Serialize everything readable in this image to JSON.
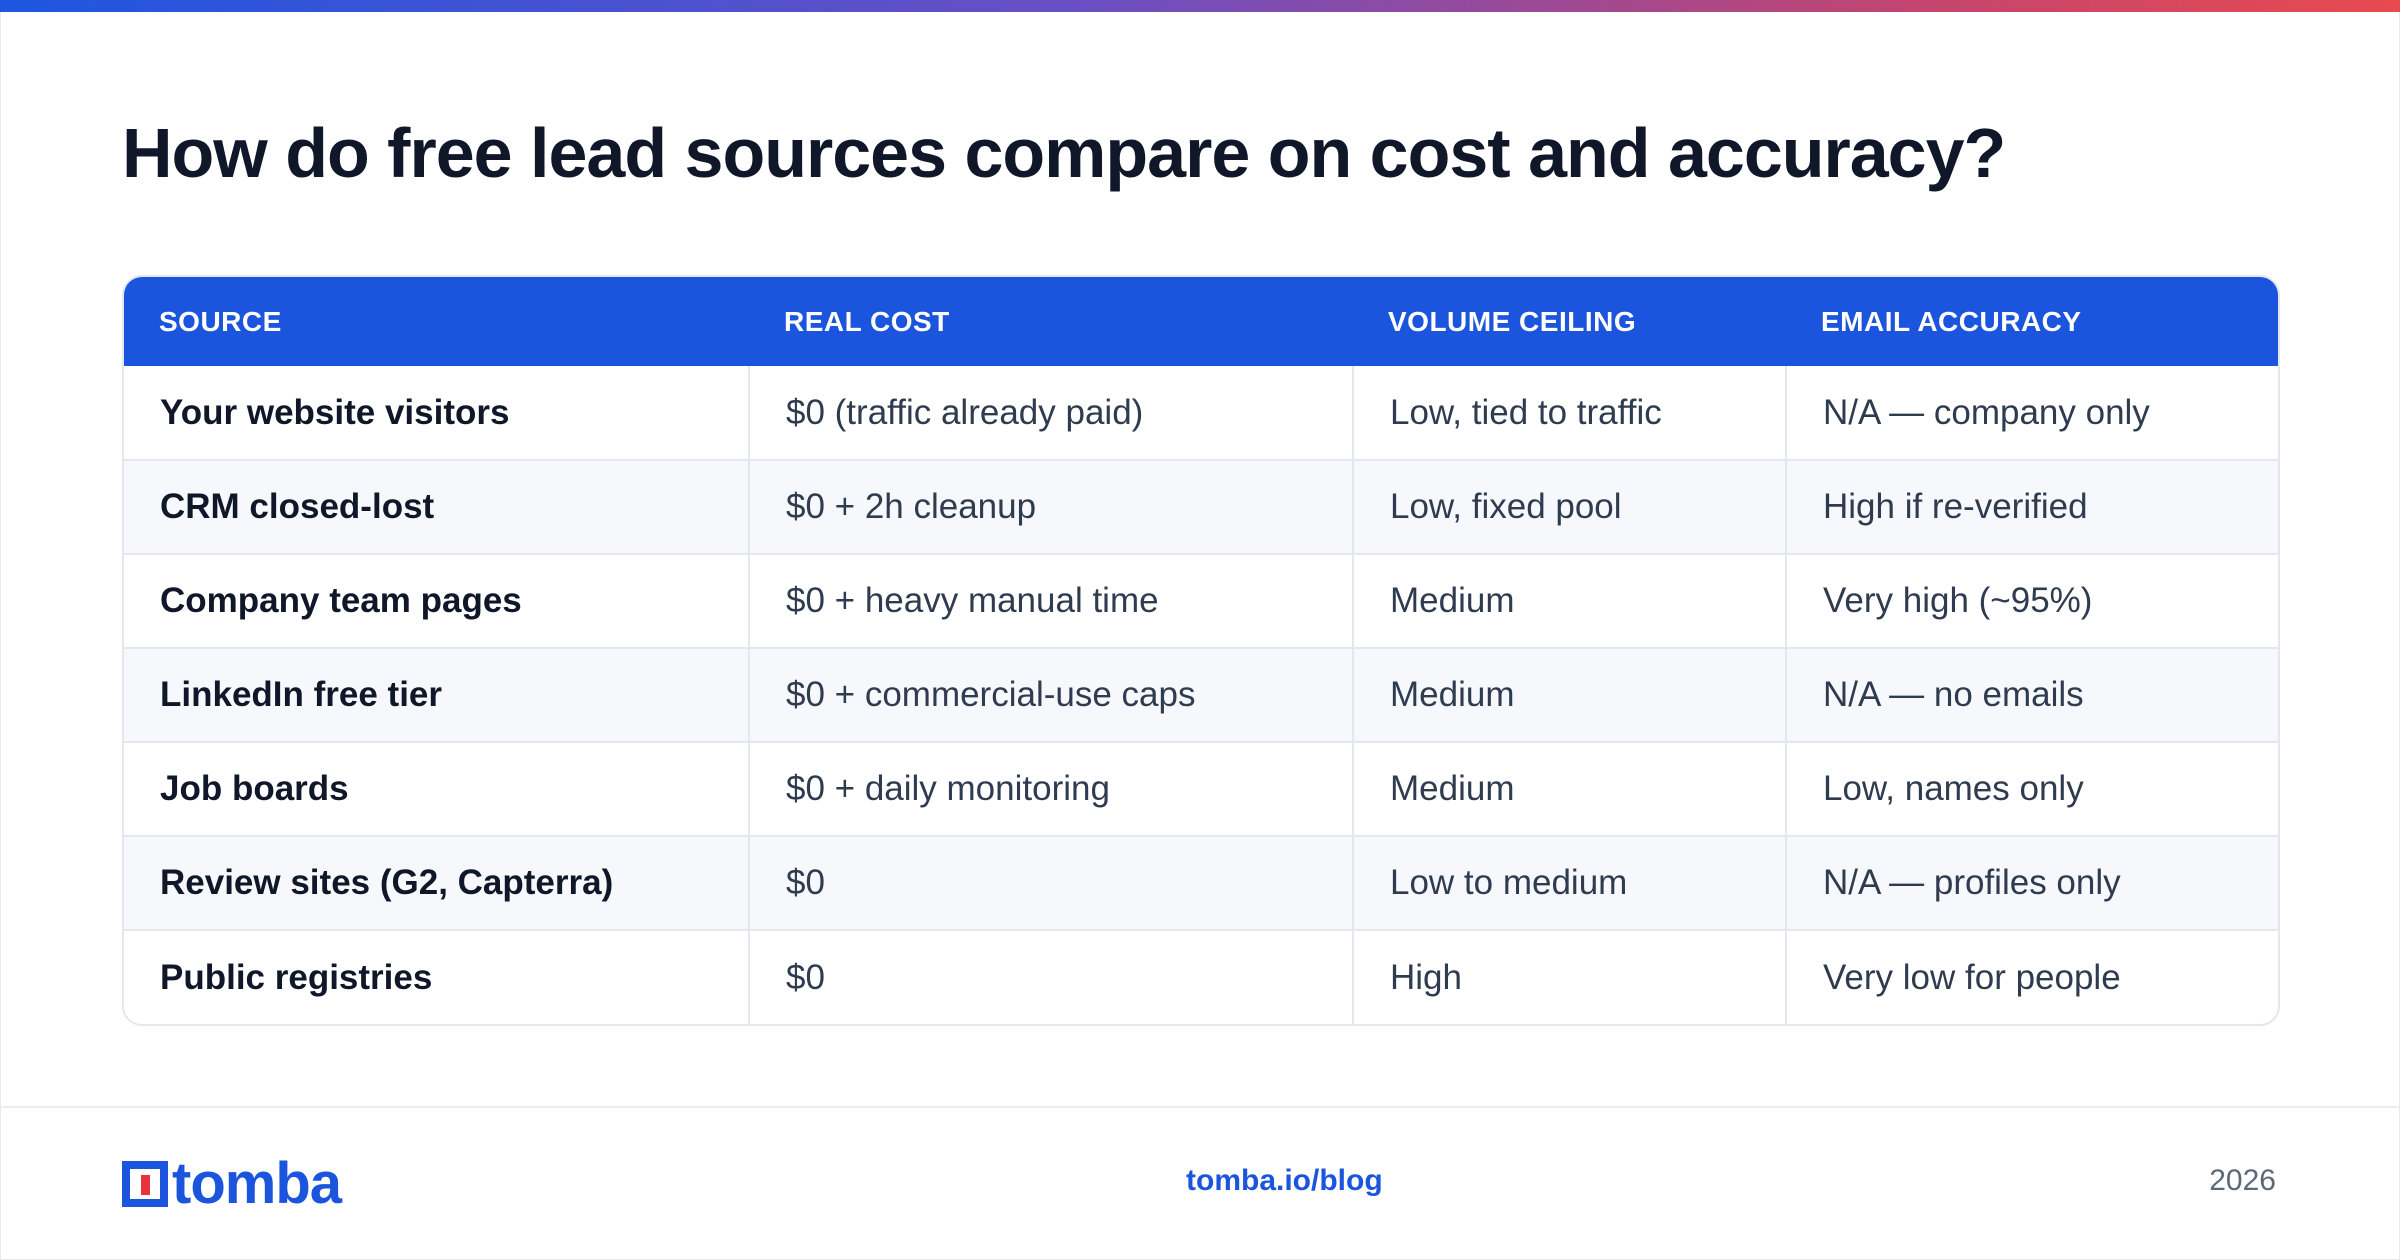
{
  "title": "How do free lead sources compare on cost and accuracy?",
  "colors": {
    "accent": "#1c55dd",
    "logo_red": "#e8333a",
    "top_bar_gradient": [
      "#1d56e0",
      "#6a4fc4",
      "#c4456f",
      "#e84a4f"
    ]
  },
  "table": {
    "headers": [
      "SOURCE",
      "REAL COST",
      "VOLUME CEILING",
      "EMAIL ACCURACY"
    ],
    "rows": [
      [
        "Your website visitors",
        "$0 (traffic already paid)",
        "Low, tied to traffic",
        "N/A — company only"
      ],
      [
        "CRM closed-lost",
        "$0 + 2h cleanup",
        "Low, fixed pool",
        "High if re-verified"
      ],
      [
        "Company team pages",
        "$0 + heavy manual time",
        "Medium",
        "Very high (~95%)"
      ],
      [
        "LinkedIn free tier",
        "$0 + commercial-use caps",
        "Medium",
        "N/A — no emails"
      ],
      [
        "Job boards",
        "$0 + daily monitoring",
        "Medium",
        "Low, names only"
      ],
      [
        "Review sites (G2, Capterra)",
        "$0",
        "Low to medium",
        "N/A — profiles only"
      ],
      [
        "Public registries",
        "$0",
        "High",
        "Very low for people"
      ]
    ]
  },
  "footer": {
    "logo_text": "tomba",
    "logo_icon": "tomba-logo-icon",
    "link": "tomba.io/blog",
    "year": "2026"
  }
}
